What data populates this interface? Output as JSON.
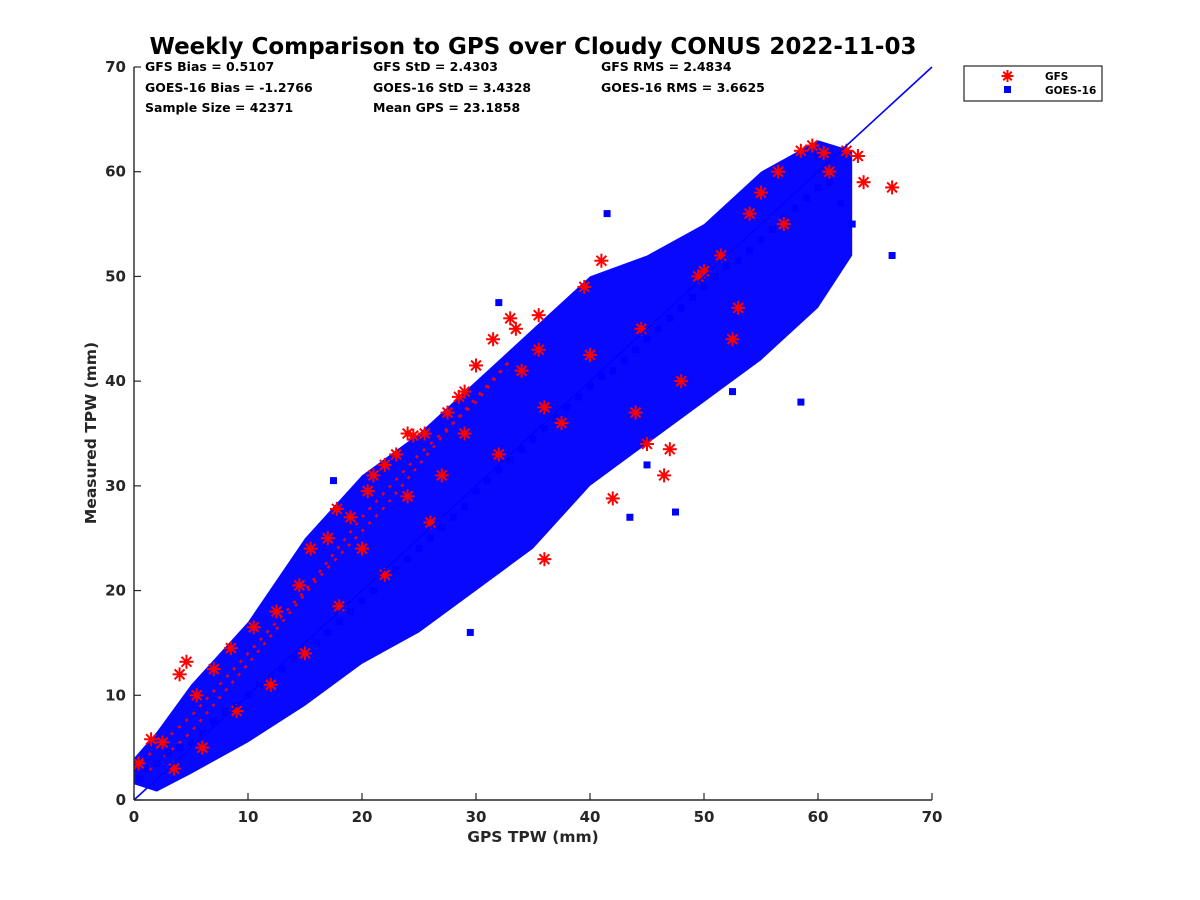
{
  "chart_data": {
    "type": "scatter",
    "title": "Weekly Comparison to GPS over Cloudy CONUS 2022-11-03",
    "xlabel": "GPS TPW (mm)",
    "ylabel": "Measured TPW (mm)",
    "xlim": [
      0,
      70
    ],
    "ylim": [
      0,
      70
    ],
    "xticks": [
      "0",
      "10",
      "20",
      "30",
      "40",
      "50",
      "60",
      "70"
    ],
    "yticks": [
      "0",
      "10",
      "20",
      "30",
      "40",
      "50",
      "60",
      "70"
    ],
    "grid": false,
    "legend_position": "outside-top-right",
    "stats": [
      "GFS Bias = 0.5107",
      "GFS StD = 2.4303",
      "GFS RMS = 2.4834",
      "GOES-16 Bias = -1.2766",
      "GOES-16 StD = 3.4328",
      "GOES-16 RMS = 3.6625",
      "Sample Size = 42371",
      "Mean GPS = 23.1858"
    ],
    "reference_line": {
      "x": [
        0,
        70
      ],
      "y": [
        0,
        70
      ],
      "color": "#0000ff"
    },
    "series": [
      {
        "name": "GFS",
        "marker": "asterisk",
        "color": "#ff0000",
        "x": [
          0.4,
          1.5,
          2.5,
          4.0,
          4.6,
          5.5,
          7.0,
          8.5,
          10.5,
          12.5,
          14.5,
          15.5,
          17.0,
          17.8,
          19.0,
          20.5,
          21.0,
          22.0,
          23.0,
          24.0,
          24.5,
          25.5,
          27.5,
          28.5,
          29.0,
          30.0,
          31.5,
          33.0,
          33.5,
          35.5,
          36.0,
          37.5,
          39.5,
          41.0,
          42.0,
          45.0,
          46.5,
          47.0,
          49.5,
          51.5,
          52.5,
          55.0,
          56.5,
          58.5,
          59.5,
          60.5,
          61.0,
          62.5,
          63.5,
          64.0,
          66.5,
          15.0,
          18.0,
          22.0,
          26.0,
          32.0,
          36.0,
          24.0,
          29.0,
          34.0,
          40.0,
          44.0,
          48.0,
          53.0,
          57.0,
          9.0,
          12.0,
          6.0,
          3.5,
          20.0,
          27.0,
          35.5,
          44.5,
          50.0,
          54.0
        ],
        "y": [
          3.5,
          5.8,
          5.5,
          12.0,
          13.2,
          10.0,
          12.5,
          14.5,
          16.5,
          18.0,
          20.5,
          24.0,
          25.0,
          27.8,
          27.0,
          29.5,
          31.0,
          32.0,
          33.0,
          35.0,
          34.8,
          35.0,
          37.0,
          38.5,
          39.0,
          41.5,
          44.0,
          46.0,
          45.0,
          46.3,
          23.0,
          36.0,
          49.0,
          51.5,
          28.8,
          34.0,
          31.0,
          33.5,
          50.0,
          52.0,
          44.0,
          58.0,
          60.0,
          62.0,
          62.5,
          61.8,
          60.0,
          62.0,
          61.5,
          59.0,
          58.5,
          14.0,
          18.5,
          21.5,
          26.5,
          33.0,
          37.5,
          29.0,
          35.0,
          41.0,
          42.5,
          37.0,
          40.0,
          47.0,
          55.0,
          8.5,
          11.0,
          5.0,
          3.0,
          24.0,
          31.0,
          43.0,
          45.0,
          50.5,
          56.0
        ]
      },
      {
        "name": "GOES-16",
        "marker": "square",
        "color": "#0000ff",
        "x": [
          0.5,
          1.0,
          2.0,
          3.0,
          4.0,
          5.0,
          6.0,
          7.0,
          8.0,
          9.0,
          10.0,
          11.0,
          12.0,
          13.0,
          14.0,
          15.0,
          16.0,
          17.0,
          18.0,
          19.0,
          20.0,
          21.0,
          22.0,
          23.0,
          24.0,
          25.0,
          26.0,
          27.0,
          28.0,
          29.0,
          30.0,
          31.0,
          32.0,
          33.0,
          34.0,
          35.0,
          36.0,
          37.0,
          38.0,
          39.0,
          40.0,
          41.0,
          42.0,
          43.0,
          44.0,
          45.0,
          46.0,
          47.0,
          48.0,
          49.0,
          50.0,
          51.0,
          52.0,
          53.0,
          54.0,
          55.0,
          56.0,
          57.0,
          58.0,
          59.0,
          60.0,
          61.0,
          62.0,
          63.0,
          66.5,
          41.5,
          43.5,
          47.5,
          45.0,
          60.0,
          52.5,
          58.5,
          32.0,
          17.5,
          29.5
        ],
        "y": [
          2.0,
          3.0,
          3.5,
          4.5,
          5.0,
          5.5,
          6.5,
          7.5,
          8.5,
          9.0,
          10.0,
          11.0,
          11.5,
          12.5,
          13.5,
          14.0,
          15.0,
          16.0,
          17.0,
          18.0,
          19.0,
          20.0,
          21.0,
          22.0,
          23.0,
          24.0,
          25.0,
          26.0,
          27.0,
          28.0,
          29.5,
          30.5,
          31.5,
          32.5,
          33.5,
          34.5,
          35.5,
          36.5,
          37.5,
          38.5,
          39.5,
          40.5,
          41.0,
          42.0,
          43.0,
          44.0,
          45.0,
          46.0,
          47.0,
          48.0,
          49.0,
          50.0,
          51.0,
          51.5,
          52.5,
          53.5,
          54.5,
          55.5,
          56.5,
          57.5,
          58.5,
          59.0,
          57.0,
          55.0,
          52.0,
          56.0,
          27.0,
          27.5,
          32.0,
          61.5,
          39.0,
          38.0,
          47.5,
          30.5,
          16.0
        ]
      }
    ]
  }
}
